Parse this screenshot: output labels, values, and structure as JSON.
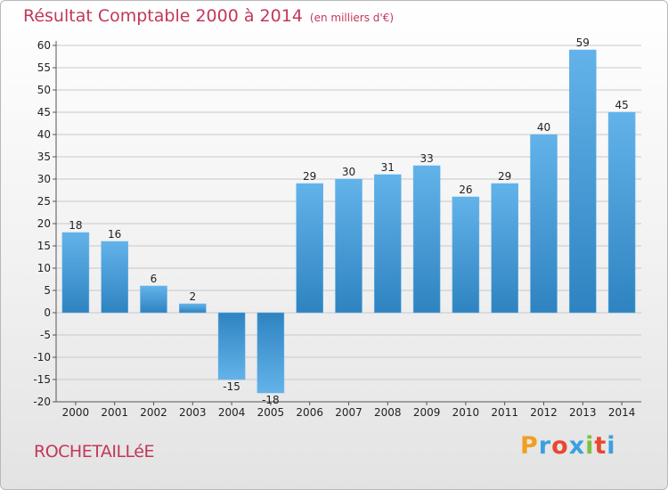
{
  "header": {
    "title": "Résultat Comptable 2000 à 2014",
    "subtitle": "(en milliers d'€)"
  },
  "footer": {
    "town": "ROCHETAILLéE",
    "logo_letters": [
      "P",
      "r",
      "o",
      "x",
      "i",
      "t",
      "i"
    ],
    "logo_colors": [
      "#f0a020",
      "#3aa0e0",
      "#e84830",
      "#3aa0e0",
      "#80c040",
      "#e84830",
      "#3aa0e0"
    ]
  },
  "colors": {
    "bar_light": "#63b3ea",
    "bar_dark": "#2e83c0",
    "grid": "#c8c8c8",
    "axis": "#555555",
    "text": "#222222"
  },
  "chart_data": {
    "type": "bar",
    "title": "Résultat Comptable 2000 à 2014",
    "xlabel": "",
    "ylabel": "",
    "ylim": [
      -20,
      60
    ],
    "ytick_step": 5,
    "grid": true,
    "categories": [
      "2000",
      "2001",
      "2002",
      "2003",
      "2004",
      "2005",
      "2006",
      "2007",
      "2008",
      "2009",
      "2010",
      "2011",
      "2012",
      "2013",
      "2014"
    ],
    "values": [
      18,
      16,
      6,
      2,
      -15,
      -18,
      29,
      30,
      31,
      33,
      26,
      29,
      40,
      59,
      45
    ]
  }
}
